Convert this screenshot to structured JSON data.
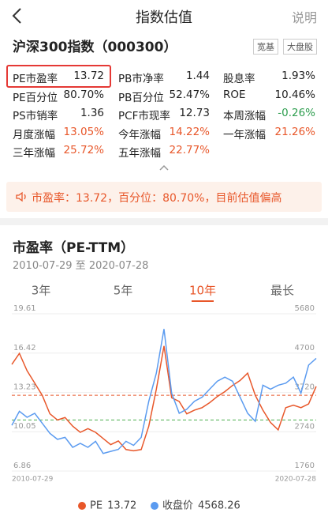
{
  "header": {
    "title": "指数估值",
    "action": "说明"
  },
  "index": {
    "name": "沪深300指数（000300）",
    "tags": [
      "宽基",
      "大盘股"
    ]
  },
  "metrics": [
    [
      {
        "label": "PE市盈率",
        "value": "13.72"
      },
      {
        "label": "PB市净率",
        "value": "1.44"
      },
      {
        "label": "股息率",
        "value": "1.93%"
      }
    ],
    [
      {
        "label": "PE百分位",
        "value": "80.70%"
      },
      {
        "label": "PB百分位",
        "value": "52.47%"
      },
      {
        "label": "ROE",
        "value": "10.46%"
      }
    ],
    [
      {
        "label": "PS市销率",
        "value": "1.36"
      },
      {
        "label": "PCF市现率",
        "value": "12.73"
      },
      {
        "label": "本周涨幅",
        "value": "-0.26%",
        "color": "#2e9e4f"
      }
    ],
    [
      {
        "label": "月度涨幅",
        "value": "13.05%",
        "color": "#e8572a"
      },
      {
        "label": "今年涨幅",
        "value": "14.22%",
        "color": "#e8572a"
      },
      {
        "label": "一年涨幅",
        "value": "21.26%",
        "color": "#e8572a"
      }
    ],
    [
      {
        "label": "三年涨幅",
        "value": "25.72%",
        "color": "#e8572a"
      },
      {
        "label": "五年涨幅",
        "value": "22.77%",
        "color": "#e8572a"
      }
    ]
  ],
  "notice": "市盈率：13.72，百分位：80.70%，目前估值偏高",
  "chart_data": {
    "type": "line",
    "title": "市盈率（PE-TTM）",
    "subtitle": "2010-07-29 至 2020-07-28",
    "tabs": [
      "3年",
      "5年",
      "10年",
      "最长"
    ],
    "active_tab": 2,
    "categories": [
      "2010-07-29",
      null,
      null,
      null,
      null,
      null,
      null,
      null,
      null,
      null,
      null,
      null,
      null,
      null,
      null,
      null,
      null,
      null,
      null,
      null,
      null,
      null,
      null,
      null,
      null,
      null,
      null,
      null,
      null,
      null,
      null,
      null,
      null,
      null,
      null,
      null,
      null,
      null,
      null,
      null,
      "2020-07-28"
    ],
    "series": [
      {
        "name": "PE",
        "color": "#e8572a",
        "values": [
          15.5,
          16.4,
          15.0,
          14.0,
          13.0,
          11.5,
          11.0,
          11.2,
          10.5,
          10.0,
          10.3,
          10.0,
          9.5,
          9.0,
          9.3,
          8.6,
          8.5,
          8.6,
          10.5,
          13.5,
          17.0,
          12.8,
          12.5,
          11.5,
          11.8,
          12.0,
          12.4,
          12.9,
          13.3,
          13.8,
          14.2,
          14.8,
          13.0,
          11.8,
          10.8,
          10.2,
          12.0,
          12.2,
          12.0,
          12.3,
          13.72
        ]
      },
      {
        "name": "收盘价",
        "color": "#5b9bf0",
        "axis": "y2",
        "values": [
          2900,
          3250,
          3100,
          3200,
          2950,
          2700,
          2550,
          2600,
          2350,
          2450,
          2350,
          2500,
          2200,
          2250,
          2300,
          2500,
          2400,
          2600,
          3500,
          4200,
          5300,
          3700,
          3200,
          3300,
          3500,
          3600,
          3800,
          4000,
          4100,
          4000,
          3600,
          3200,
          3000,
          3900,
          3800,
          3900,
          3950,
          4100,
          3700,
          4400,
          4568.26
        ]
      }
    ],
    "hlines": [
      {
        "value": 13.0,
        "color": "#e8572a"
      },
      {
        "value": 11.0,
        "color": "#4caf50"
      }
    ],
    "ylim": [
      6.86,
      19.61
    ],
    "yticks": [
      6.86,
      10.05,
      13.23,
      16.42,
      19.61
    ],
    "y2lim": [
      1760,
      5680
    ],
    "y2ticks": [
      1760,
      2740,
      3720,
      4700,
      5680
    ],
    "grid": true
  }
}
